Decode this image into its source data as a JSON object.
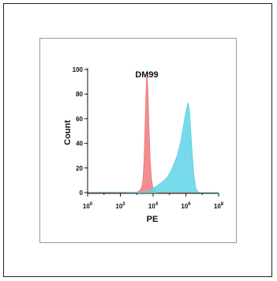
{
  "chart_data": {
    "type": "area",
    "title": "DM99",
    "xlabel": "PE",
    "ylabel": "Count",
    "x_scale": "log",
    "xlim": [
      1,
      100000000
    ],
    "ylim": [
      0,
      100
    ],
    "yticks": [
      "0",
      "20",
      "40",
      "60",
      "80",
      "100"
    ],
    "xticks": [
      {
        "base": "10",
        "exp": "0"
      },
      {
        "base": "10",
        "exp": "2"
      },
      {
        "base": "10",
        "exp": "4"
      },
      {
        "base": "10",
        "exp": "6"
      },
      {
        "base": "10",
        "exp": "8"
      }
    ],
    "grid": false,
    "series": [
      {
        "color": "#f07a7c",
        "points": [
          [
            1,
            0
          ],
          [
            100,
            0
          ],
          [
            1000,
            0.3
          ],
          [
            1500,
            1.5
          ],
          [
            2000,
            4
          ],
          [
            2400,
            10
          ],
          [
            2800,
            25
          ],
          [
            3200,
            50
          ],
          [
            3600,
            75
          ],
          [
            4000,
            92
          ],
          [
            4300,
            95
          ],
          [
            4800,
            82
          ],
          [
            5500,
            55
          ],
          [
            6500,
            28
          ],
          [
            8000,
            10
          ],
          [
            10000,
            3
          ],
          [
            13000,
            1
          ],
          [
            20000,
            0
          ],
          [
            100000000,
            0
          ]
        ]
      },
      {
        "color": "#5fd3e6",
        "points": [
          [
            1,
            0.3
          ],
          [
            100,
            0.3
          ],
          [
            1000,
            0.3
          ],
          [
            3000,
            0.5
          ],
          [
            6000,
            1.5
          ],
          [
            10000,
            3.5
          ],
          [
            20000,
            6
          ],
          [
            40000,
            9
          ],
          [
            80000,
            13
          ],
          [
            150000,
            20
          ],
          [
            300000,
            30
          ],
          [
            500000,
            42
          ],
          [
            800000,
            58
          ],
          [
            1100000,
            68
          ],
          [
            1400000,
            73
          ],
          [
            1700000,
            65
          ],
          [
            2200000,
            40
          ],
          [
            3000000,
            15
          ],
          [
            4000000,
            4
          ],
          [
            5000000,
            1
          ],
          [
            7000000,
            0
          ],
          [
            100000000,
            0
          ]
        ]
      }
    ]
  }
}
